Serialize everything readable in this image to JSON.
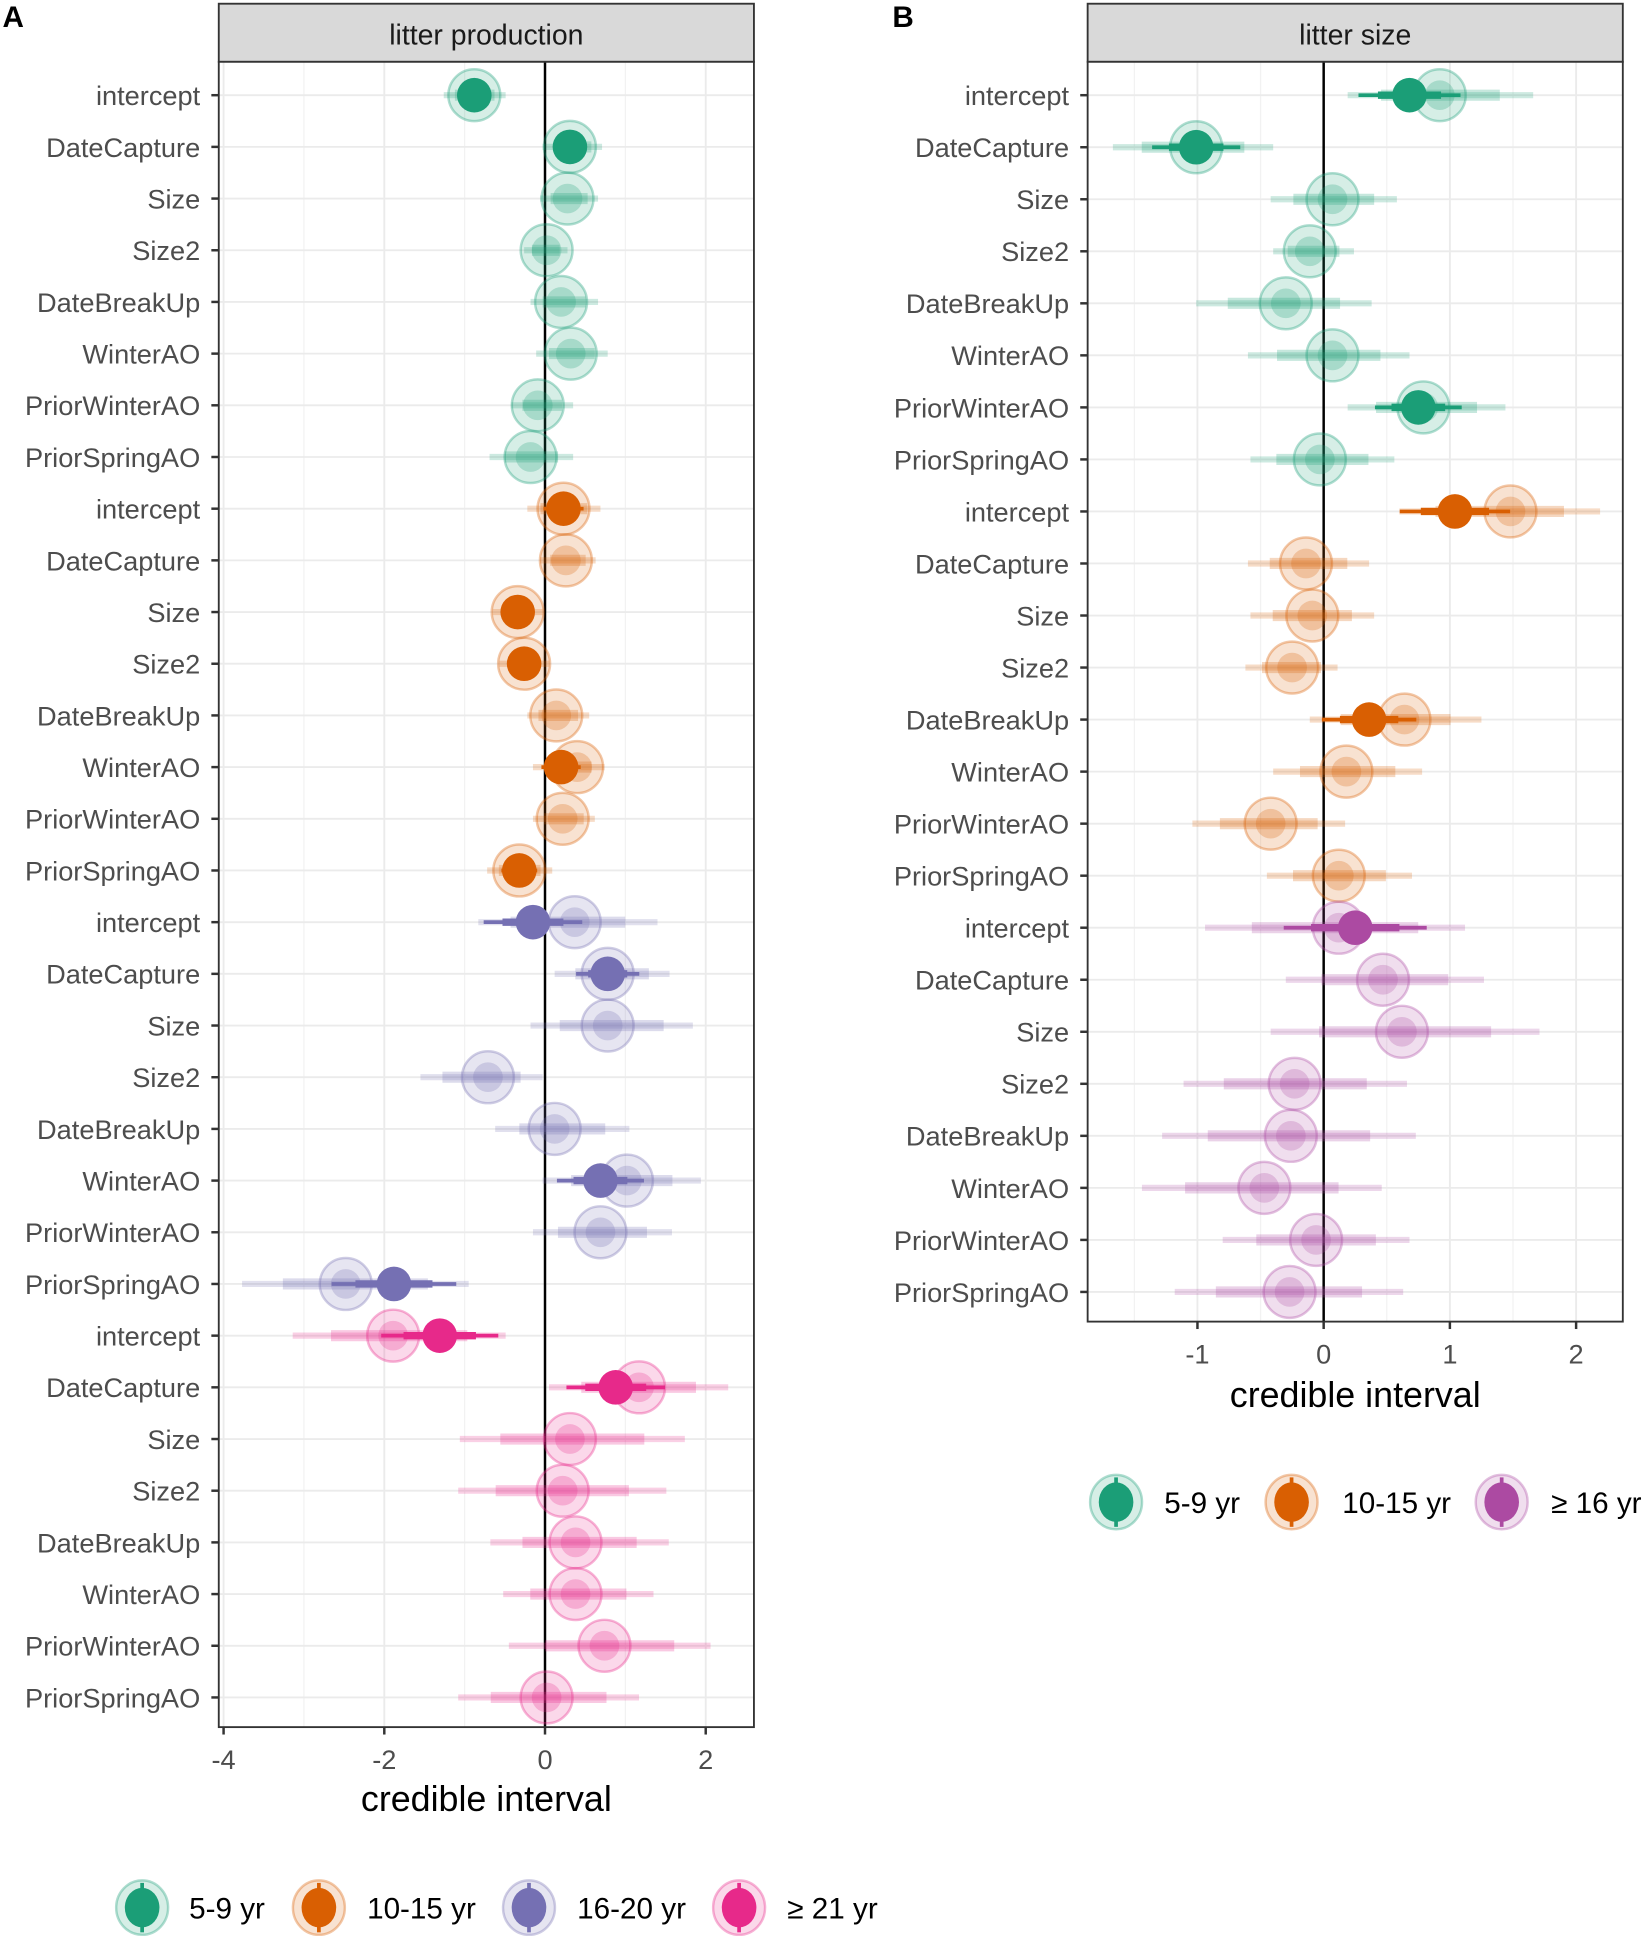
{
  "colors": {
    "5-9 yr": "#1b9e77",
    "10-15 yr": "#d95f02",
    "16-20 yr": "#7570b3",
    "≥ 21 yr": "#e7298a",
    "≥ 16 yr": "#ac4aa2"
  },
  "chart_data": [
    {
      "type": "interval",
      "panel_letter": "A",
      "title": "litter production",
      "xlabel": "credible interval",
      "xlim": [
        -4.06,
        2.6
      ],
      "xticks": [
        -4,
        -2,
        0,
        2
      ],
      "xticks_minor": [
        -3,
        -1,
        1
      ],
      "grid": true,
      "legend": {
        "placement": "bottom",
        "entries": [
          "5-9 yr",
          "10-15 yr",
          "16-20 yr",
          "≥ 21 yr"
        ]
      },
      "rows": [
        {
          "group": "5-9 yr",
          "term": "intercept",
          "estimate": -0.88,
          "faded_estimate": -0.88,
          "ci": [
            -1.26,
            -0.49
          ],
          "credible": true
        },
        {
          "group": "5-9 yr",
          "term": "DateCapture",
          "estimate": 0.31,
          "faded_estimate": 0.31,
          "ci": [
            -0.03,
            0.71
          ],
          "credible": true
        },
        {
          "group": "5-9 yr",
          "term": "Size",
          "estimate": 0.28,
          "faded_estimate": 0.28,
          "ci": [
            -0.06,
            0.66
          ],
          "credible": false
        },
        {
          "group": "5-9 yr",
          "term": "Size2",
          "estimate": 0.02,
          "faded_estimate": 0.02,
          "ci": [
            -0.26,
            0.28
          ],
          "credible": false
        },
        {
          "group": "5-9 yr",
          "term": "DateBreakUp",
          "estimate": 0.2,
          "faded_estimate": 0.2,
          "ci": [
            -0.18,
            0.66
          ],
          "credible": false
        },
        {
          "group": "5-9 yr",
          "term": "WinterAO",
          "estimate": 0.32,
          "faded_estimate": 0.32,
          "ci": [
            -0.11,
            0.78
          ],
          "credible": false
        },
        {
          "group": "5-9 yr",
          "term": "PriorWinterAO",
          "estimate": -0.09,
          "faded_estimate": -0.09,
          "ci": [
            -0.42,
            0.35
          ],
          "credible": false
        },
        {
          "group": "5-9 yr",
          "term": "PriorSpringAO",
          "estimate": -0.18,
          "faded_estimate": -0.18,
          "ci": [
            -0.69,
            0.35
          ],
          "credible": false
        },
        {
          "group": "10-15 yr",
          "term": "intercept",
          "estimate": 0.23,
          "faded_estimate": 0.23,
          "ci": [
            -0.22,
            0.69
          ],
          "credible": true
        },
        {
          "group": "10-15 yr",
          "term": "DateCapture",
          "estimate": 0.26,
          "faded_estimate": 0.26,
          "ci": [
            -0.06,
            0.63
          ],
          "credible": false
        },
        {
          "group": "10-15 yr",
          "term": "Size",
          "estimate": -0.34,
          "faded_estimate": -0.34,
          "ci": [
            -0.65,
            -0.03
          ],
          "credible": true
        },
        {
          "group": "10-15 yr",
          "term": "Size2",
          "estimate": -0.26,
          "faded_estimate": -0.26,
          "ci": [
            -0.57,
            0.05
          ],
          "credible": true
        },
        {
          "group": "10-15 yr",
          "term": "DateBreakUp",
          "estimate": 0.14,
          "faded_estimate": 0.14,
          "ci": [
            -0.22,
            0.55
          ],
          "credible": false
        },
        {
          "group": "10-15 yr",
          "term": "WinterAO",
          "estimate": 0.2,
          "faded_estimate": 0.4,
          "ci": [
            -0.15,
            0.74
          ],
          "credible": true
        },
        {
          "group": "10-15 yr",
          "term": "PriorWinterAO",
          "estimate": 0.22,
          "faded_estimate": 0.22,
          "ci": [
            -0.15,
            0.62
          ],
          "credible": false
        },
        {
          "group": "10-15 yr",
          "term": "PriorSpringAO",
          "estimate": -0.32,
          "faded_estimate": -0.32,
          "ci": [
            -0.72,
            0.09
          ],
          "credible": true
        },
        {
          "group": "16-20 yr",
          "term": "intercept",
          "estimate": -0.15,
          "faded_estimate": 0.37,
          "ci": [
            -0.83,
            1.4
          ],
          "credible": true
        },
        {
          "group": "16-20 yr",
          "term": "DateCapture",
          "estimate": 0.78,
          "faded_estimate": 0.78,
          "ci": [
            0.12,
            1.55
          ],
          "credible": true
        },
        {
          "group": "16-20 yr",
          "term": "Size",
          "estimate": 0.78,
          "faded_estimate": 0.78,
          "ci": [
            -0.18,
            1.84
          ],
          "credible": false
        },
        {
          "group": "16-20 yr",
          "term": "Size2",
          "estimate": -0.71,
          "faded_estimate": -0.71,
          "ci": [
            -1.55,
            -0.03
          ],
          "credible": false
        },
        {
          "group": "16-20 yr",
          "term": "DateBreakUp",
          "estimate": 0.12,
          "faded_estimate": 0.12,
          "ci": [
            -0.62,
            1.05
          ],
          "credible": false
        },
        {
          "group": "16-20 yr",
          "term": "WinterAO",
          "estimate": 0.69,
          "faded_estimate": 1.02,
          "ci": [
            -0.03,
            1.94
          ],
          "credible": true
        },
        {
          "group": "16-20 yr",
          "term": "PriorWinterAO",
          "estimate": 0.69,
          "faded_estimate": 0.69,
          "ci": [
            -0.15,
            1.58
          ],
          "credible": false
        },
        {
          "group": "16-20 yr",
          "term": "PriorSpringAO",
          "estimate": -1.88,
          "faded_estimate": -2.48,
          "ci": [
            -3.77,
            -0.95
          ],
          "credible": true
        },
        {
          "group": "≥ 21 yr",
          "term": "intercept",
          "estimate": -1.31,
          "faded_estimate": -1.89,
          "ci": [
            -3.14,
            -0.49
          ],
          "credible": true
        },
        {
          "group": "≥ 21 yr",
          "term": "DateCapture",
          "estimate": 0.88,
          "faded_estimate": 1.17,
          "ci": [
            0.05,
            2.28
          ],
          "credible": true
        },
        {
          "group": "≥ 21 yr",
          "term": "Size",
          "estimate": 0.31,
          "faded_estimate": 0.31,
          "ci": [
            -1.06,
            1.74
          ],
          "credible": false
        },
        {
          "group": "≥ 21 yr",
          "term": "Size2",
          "estimate": 0.22,
          "faded_estimate": 0.22,
          "ci": [
            -1.08,
            1.51
          ],
          "credible": false
        },
        {
          "group": "≥ 21 yr",
          "term": "DateBreakUp",
          "estimate": 0.38,
          "faded_estimate": 0.38,
          "ci": [
            -0.68,
            1.54
          ],
          "credible": false
        },
        {
          "group": "≥ 21 yr",
          "term": "WinterAO",
          "estimate": 0.38,
          "faded_estimate": 0.38,
          "ci": [
            -0.52,
            1.35
          ],
          "credible": false
        },
        {
          "group": "≥ 21 yr",
          "term": "PriorWinterAO",
          "estimate": 0.74,
          "faded_estimate": 0.74,
          "ci": [
            -0.45,
            2.06
          ],
          "credible": false
        },
        {
          "group": "≥ 21 yr",
          "term": "PriorSpringAO",
          "estimate": 0.02,
          "faded_estimate": 0.02,
          "ci": [
            -1.08,
            1.17
          ],
          "credible": false
        }
      ]
    },
    {
      "type": "interval",
      "panel_letter": "B",
      "title": "litter size",
      "xlabel": "credible interval",
      "xlim": [
        -1.87,
        2.37
      ],
      "xticks": [
        -1,
        0,
        1,
        2
      ],
      "xticks_minor": [
        -1.5,
        -0.5,
        0.5,
        1.5
      ],
      "grid": true,
      "legend": {
        "placement": "bottom",
        "entries": [
          "5-9 yr",
          "10-15 yr",
          "≥ 16 yr"
        ]
      },
      "rows": [
        {
          "group": "5-9 yr",
          "term": "intercept",
          "estimate": 0.68,
          "faded_estimate": 0.92,
          "ci": [
            0.19,
            1.66
          ],
          "credible": true
        },
        {
          "group": "5-9 yr",
          "term": "DateCapture",
          "estimate": -1.01,
          "faded_estimate": -1.01,
          "ci": [
            -1.67,
            -0.4
          ],
          "credible": true
        },
        {
          "group": "5-9 yr",
          "term": "Size",
          "estimate": 0.07,
          "faded_estimate": 0.07,
          "ci": [
            -0.42,
            0.58
          ],
          "credible": false
        },
        {
          "group": "5-9 yr",
          "term": "Size2",
          "estimate": -0.11,
          "faded_estimate": -0.11,
          "ci": [
            -0.4,
            0.24
          ],
          "credible": false
        },
        {
          "group": "5-9 yr",
          "term": "DateBreakUp",
          "estimate": -0.3,
          "faded_estimate": -0.3,
          "ci": [
            -1.01,
            0.38
          ],
          "credible": false
        },
        {
          "group": "5-9 yr",
          "term": "WinterAO",
          "estimate": 0.07,
          "faded_estimate": 0.07,
          "ci": [
            -0.6,
            0.68
          ],
          "credible": false
        },
        {
          "group": "5-9 yr",
          "term": "PriorWinterAO",
          "estimate": 0.75,
          "faded_estimate": 0.79,
          "ci": [
            0.19,
            1.44
          ],
          "credible": true
        },
        {
          "group": "5-9 yr",
          "term": "PriorSpringAO",
          "estimate": -0.03,
          "faded_estimate": -0.03,
          "ci": [
            -0.58,
            0.56
          ],
          "credible": false
        },
        {
          "group": "10-15 yr",
          "term": "intercept",
          "estimate": 1.04,
          "faded_estimate": 1.48,
          "ci": [
            0.6,
            2.19
          ],
          "credible": true
        },
        {
          "group": "10-15 yr",
          "term": "DateCapture",
          "estimate": -0.14,
          "faded_estimate": -0.14,
          "ci": [
            -0.6,
            0.36
          ],
          "credible": false
        },
        {
          "group": "10-15 yr",
          "term": "Size",
          "estimate": -0.09,
          "faded_estimate": -0.09,
          "ci": [
            -0.58,
            0.4
          ],
          "credible": false
        },
        {
          "group": "10-15 yr",
          "term": "Size2",
          "estimate": -0.25,
          "faded_estimate": -0.25,
          "ci": [
            -0.62,
            0.11
          ],
          "credible": false
        },
        {
          "group": "10-15 yr",
          "term": "DateBreakUp",
          "estimate": 0.36,
          "faded_estimate": 0.64,
          "ci": [
            -0.11,
            1.25
          ],
          "credible": true
        },
        {
          "group": "10-15 yr",
          "term": "WinterAO",
          "estimate": 0.18,
          "faded_estimate": 0.18,
          "ci": [
            -0.4,
            0.78
          ],
          "credible": false
        },
        {
          "group": "10-15 yr",
          "term": "PriorWinterAO",
          "estimate": -0.42,
          "faded_estimate": -0.42,
          "ci": [
            -1.04,
            0.17
          ],
          "credible": false
        },
        {
          "group": "10-15 yr",
          "term": "PriorSpringAO",
          "estimate": 0.12,
          "faded_estimate": 0.12,
          "ci": [
            -0.45,
            0.7
          ],
          "credible": false
        },
        {
          "group": "≥ 16 yr",
          "term": "intercept",
          "estimate": 0.25,
          "faded_estimate": 0.12,
          "ci": [
            -0.94,
            1.12
          ],
          "credible": true
        },
        {
          "group": "≥ 16 yr",
          "term": "DateCapture",
          "estimate": 0.47,
          "faded_estimate": 0.47,
          "ci": [
            -0.3,
            1.27
          ],
          "credible": false
        },
        {
          "group": "≥ 16 yr",
          "term": "Size",
          "estimate": 0.62,
          "faded_estimate": 0.62,
          "ci": [
            -0.42,
            1.71
          ],
          "credible": false
        },
        {
          "group": "≥ 16 yr",
          "term": "Size2",
          "estimate": -0.23,
          "faded_estimate": -0.23,
          "ci": [
            -1.11,
            0.66
          ],
          "credible": false
        },
        {
          "group": "≥ 16 yr",
          "term": "DateBreakUp",
          "estimate": -0.26,
          "faded_estimate": -0.26,
          "ci": [
            -1.28,
            0.73
          ],
          "credible": false
        },
        {
          "group": "≥ 16 yr",
          "term": "WinterAO",
          "estimate": -0.47,
          "faded_estimate": -0.47,
          "ci": [
            -1.44,
            0.46
          ],
          "credible": false
        },
        {
          "group": "≥ 16 yr",
          "term": "PriorWinterAO",
          "estimate": -0.06,
          "faded_estimate": -0.06,
          "ci": [
            -0.8,
            0.68
          ],
          "credible": false
        },
        {
          "group": "≥ 16 yr",
          "term": "PriorSpringAO",
          "estimate": -0.27,
          "faded_estimate": -0.27,
          "ci": [
            -1.18,
            0.63
          ],
          "credible": false
        }
      ]
    }
  ]
}
